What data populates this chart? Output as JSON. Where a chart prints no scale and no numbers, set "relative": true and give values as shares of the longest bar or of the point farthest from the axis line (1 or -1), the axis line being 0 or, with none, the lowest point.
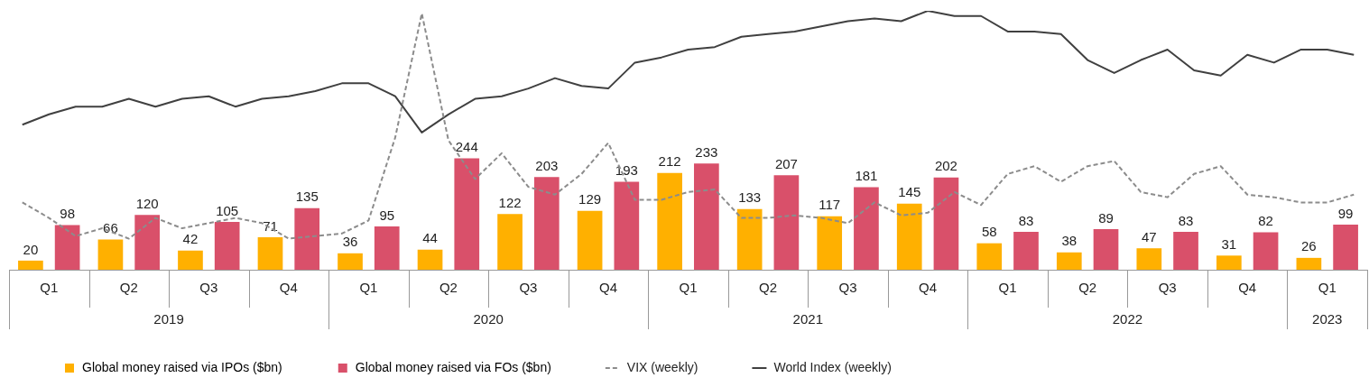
{
  "chart_data": [
    {
      "type": "bar",
      "legend": "bottom",
      "tick_labels": "x",
      "data_labels": true,
      "categories": [
        "Q1",
        "Q2",
        "Q3",
        "Q4",
        "Q1",
        "Q2",
        "Q3",
        "Q4",
        "Q1",
        "Q2",
        "Q3",
        "Q4",
        "Q1",
        "Q2",
        "Q3",
        "Q4",
        "Q1"
      ],
      "annotations": [
        "2019",
        "2020",
        "2021",
        "2022",
        "2023"
      ],
      "series": [
        {
          "name": "Global money raised via IPOs ($bn)",
          "color": "#ffb000",
          "values": [
            20,
            66,
            42,
            71,
            36,
            44,
            122,
            129,
            212,
            133,
            117,
            145,
            58,
            38,
            47,
            31,
            26
          ]
        },
        {
          "name": "Global money raised via FOs ($bn)",
          "color": "#d9506a",
          "values": [
            98,
            120,
            105,
            135,
            95,
            244,
            203,
            193,
            233,
            207,
            181,
            202,
            83,
            89,
            83,
            82,
            99
          ]
        }
      ]
    },
    {
      "type": "line",
      "relative": true,
      "legend": "bottom",
      "tick_labels": false,
      "categories": [
        null,
        null,
        null,
        null,
        null,
        null,
        null,
        null,
        null,
        null,
        null,
        null,
        null,
        null,
        null,
        null,
        null,
        null,
        null,
        null,
        null,
        null,
        null,
        null,
        null,
        null,
        null,
        null,
        null,
        null,
        null,
        null,
        null,
        null,
        null,
        null,
        null,
        null,
        null,
        null,
        null,
        null,
        null,
        null,
        null,
        null,
        null,
        null,
        null,
        null,
        null
      ],
      "series": [
        {
          "name": "VIX (weekly)",
          "line_style": "dashed",
          "color": "#8c8c8c",
          "values": [
            0.26,
            0.2,
            0.13,
            0.16,
            0.12,
            0.2,
            0.16,
            0.18,
            0.2,
            0.18,
            0.12,
            0.13,
            0.14,
            0.19,
            0.51,
            0.99,
            0.5,
            0.35,
            0.45,
            0.32,
            0.29,
            0.37,
            0.49,
            0.27,
            0.27,
            0.3,
            0.31,
            0.2,
            0.2,
            0.21,
            0.2,
            0.18,
            0.26,
            0.21,
            0.22,
            0.3,
            0.25,
            0.37,
            0.4,
            0.34,
            0.4,
            0.42,
            0.3,
            0.28,
            0.37,
            0.4,
            0.29,
            0.28,
            0.26,
            0.26,
            0.29
          ]
        },
        {
          "name": "World Index (weekly)",
          "line_style": "solid",
          "color": "#404040",
          "values": [
            0.56,
            0.6,
            0.63,
            0.63,
            0.66,
            0.63,
            0.66,
            0.67,
            0.63,
            0.66,
            0.67,
            0.69,
            0.72,
            0.72,
            0.67,
            0.53,
            0.6,
            0.66,
            0.67,
            0.7,
            0.74,
            0.71,
            0.7,
            0.8,
            0.82,
            0.85,
            0.86,
            0.9,
            0.91,
            0.92,
            0.94,
            0.96,
            0.97,
            0.96,
            1.0,
            0.98,
            0.98,
            0.92,
            0.92,
            0.91,
            0.81,
            0.76,
            0.81,
            0.85,
            0.77,
            0.75,
            0.83,
            0.8,
            0.85,
            0.85,
            0.83
          ]
        }
      ]
    }
  ]
}
